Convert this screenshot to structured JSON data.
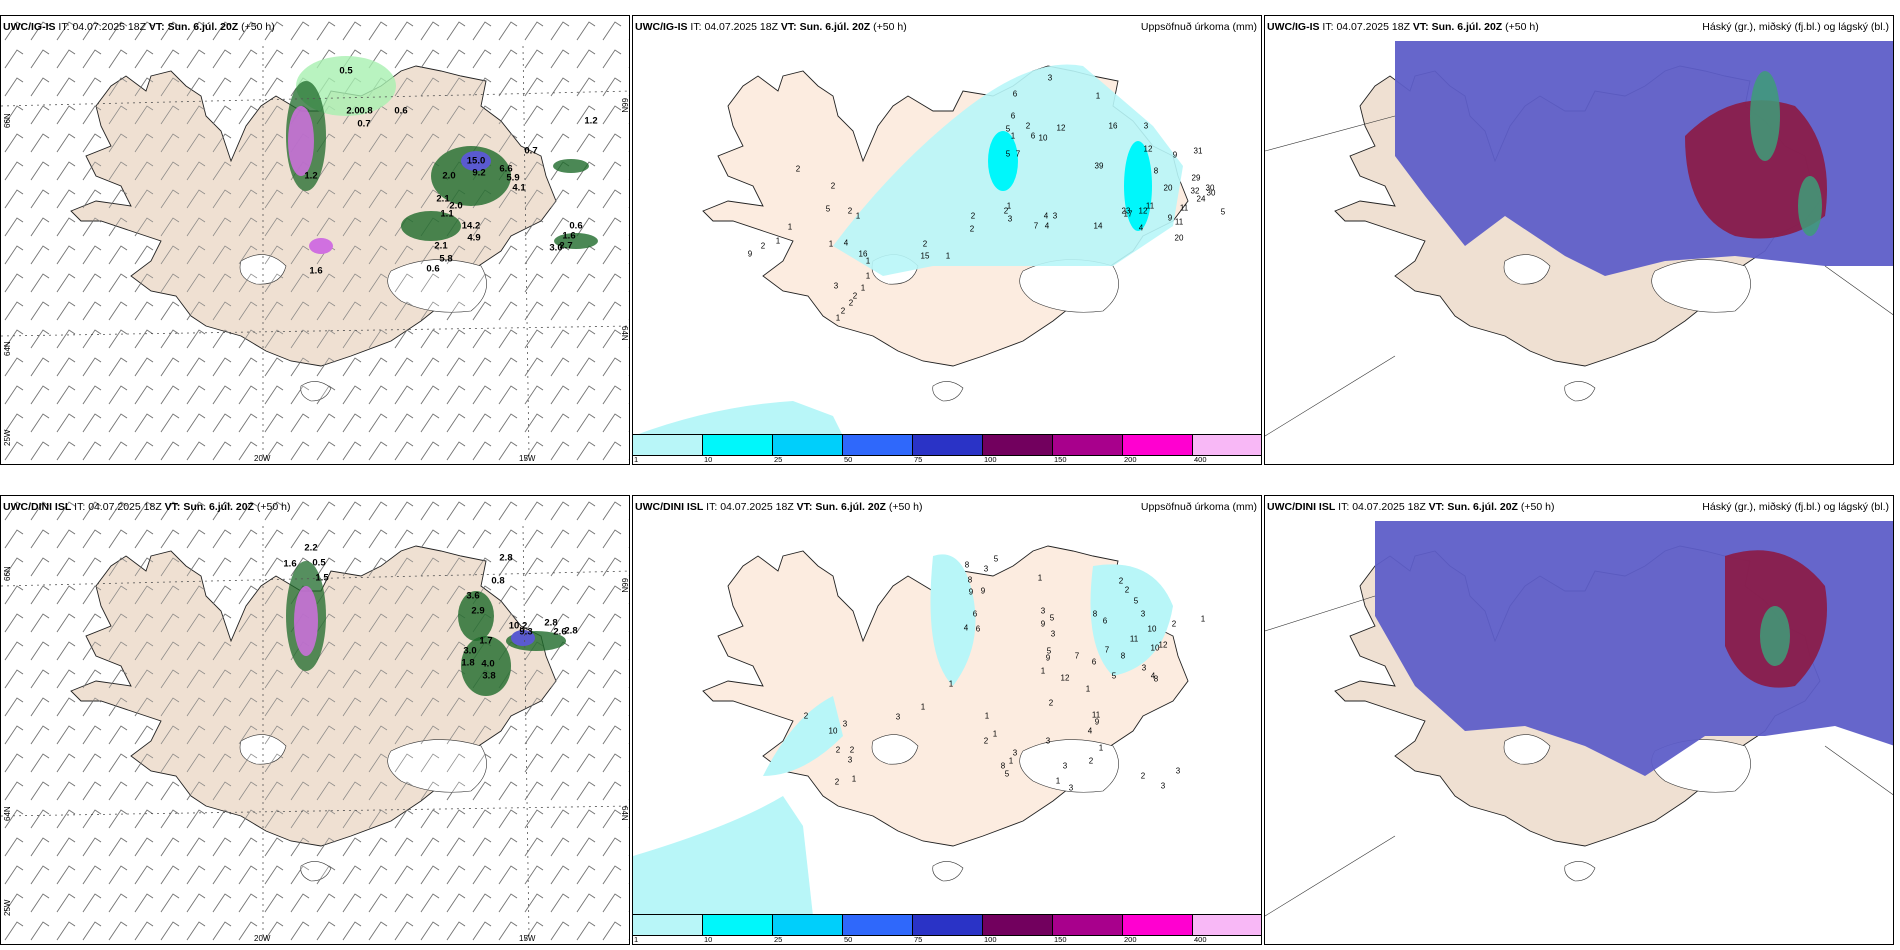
{
  "panels": [
    {
      "model": "UWC/IG-IS",
      "it_label": "IT:",
      "it_value": "04.07.2025 18Z",
      "vt_label": "VT:",
      "vt_value": "Sun. 6.júl. 20Z",
      "lead": "(+50 h)",
      "title_right": "",
      "axis_labels": {
        "lat_top": "66N",
        "lat_bottom": "64N",
        "lon_left": "25W",
        "lon_20": "20W",
        "lon_15": "15W",
        "right_66": "66N",
        "right_64": "64N"
      },
      "values": [
        "0.5",
        "2.0",
        "0.8",
        "0.7",
        "0.6",
        "1.2",
        "0.7",
        "15.0",
        "9.2",
        "2.0",
        "6.6",
        "5.9",
        "4.1",
        "2.1",
        "2.0",
        "1.1",
        "14.2",
        "4.9",
        "2.1",
        "5.8",
        "0.6",
        "1.6",
        "3.0",
        "2.7",
        "0.6",
        "1.2",
        "1.6"
      ]
    },
    {
      "model": "UWC/IG-IS",
      "it_label": "IT:",
      "it_value": "04.07.2025 18Z",
      "vt_label": "VT:",
      "vt_value": "Sun. 6.júl. 20Z",
      "lead": "(+50 h)",
      "title_right": "Uppsöfnuð úrkoma (mm)",
      "values": [
        "3",
        "1",
        "1",
        "6",
        "6",
        "2",
        "5",
        "5",
        "7",
        "6",
        "10",
        "12",
        "16",
        "39",
        "3",
        "12",
        "9",
        "31",
        "29",
        "24",
        "20",
        "8",
        "32",
        "30",
        "11",
        "30",
        "5",
        "17",
        "23",
        "14",
        "12",
        "11",
        "9",
        "11",
        "20",
        "4",
        "3",
        "7",
        "4",
        "4",
        "3",
        "1",
        "2",
        "2",
        "2",
        "16",
        "15",
        "1",
        "2",
        "9",
        "2",
        "1",
        "1",
        "4",
        "5",
        "2",
        "2",
        "2",
        "1",
        "1",
        "1",
        "1",
        "2",
        "2",
        "1",
        "3",
        "2",
        "1"
      ]
    },
    {
      "model": "UWC/IG-IS",
      "it_label": "IT:",
      "it_value": "04.07.2025 18Z",
      "vt_label": "VT:",
      "vt_value": "Sun. 6.júl. 20Z",
      "lead": "(+50 h)",
      "title_right": "Háský (gr.), miðský (fj.bl.) og lágský (bl.)"
    },
    {
      "model": "UWC/DINI ISL",
      "it_label": "IT:",
      "it_value": "04.07.2025 18Z",
      "vt_label": "VT:",
      "vt_value": "Sun. 6.júl. 20Z",
      "lead": "(+50 h)",
      "title_right": "",
      "axis_labels": {
        "lat_top": "66N",
        "lat_bottom": "64N",
        "lon_left": "25W",
        "lon_20": "20W",
        "lon_15": "15W",
        "right_66": "66N",
        "right_64": "64N"
      },
      "values": [
        "2.2",
        "1.6",
        "0.5",
        "1.5",
        "2.8",
        "0.8",
        "3.6",
        "2.9",
        "10.2",
        "9.3",
        "2.8",
        "2.6",
        "2.8",
        "1.7",
        "3.0",
        "1.8",
        "4.0",
        "3.8"
      ]
    },
    {
      "model": "UWC/DINI ISL",
      "it_label": "IT:",
      "it_value": "04.07.2025 18Z",
      "vt_label": "VT:",
      "vt_value": "Sun. 6.júl. 20Z",
      "lead": "(+50 h)",
      "title_right": "Uppsöfnuð úrkoma (mm)",
      "values": [
        "5",
        "8",
        "3",
        "8",
        "9",
        "9",
        "6",
        "4",
        "6",
        "1",
        "2",
        "2",
        "5",
        "3",
        "1",
        "2",
        "10",
        "8",
        "6",
        "11",
        "12",
        "10",
        "8",
        "3",
        "4",
        "8",
        "7",
        "5",
        "6",
        "7",
        "9",
        "5",
        "1",
        "3",
        "9",
        "5",
        "3",
        "12",
        "1",
        "2",
        "11",
        "9",
        "4",
        "2",
        "1",
        "1",
        "3",
        "1",
        "2",
        "3",
        "3",
        "2",
        "3",
        "1",
        "3",
        "3",
        "1",
        "8",
        "5",
        "10",
        "3",
        "2",
        "1",
        "1",
        "3",
        "2",
        "3",
        "2",
        "1",
        "2"
      ]
    },
    {
      "model": "UWC/DINI ISL",
      "it_label": "IT:",
      "it_value": "04.07.2025 18Z",
      "vt_label": "VT:",
      "vt_value": "Sun. 6.júl. 20Z",
      "lead": "(+50 h)",
      "title_right": "Háský (gr.), miðský (fj.bl.) og lágský (bl.)"
    }
  ],
  "colorbar": {
    "ticks": [
      "1",
      "10",
      "25",
      "50",
      "75",
      "100",
      "150",
      "200",
      "400"
    ],
    "colors": [
      "#b8f6f8",
      "#00f7fb",
      "#00cffb",
      "#2f68fb",
      "#2a33c6",
      "#72005e",
      "#a8008c",
      "#ff00d0",
      "#f8b8f6"
    ]
  },
  "colors": {
    "land": "#efe0d2",
    "precip_land": "#fcece0",
    "cloud_low": "#5e5ec8",
    "cloud_mid": "#8c1a44",
    "cloud_high": "#3e9c78",
    "green_rain": "#1e6a2a"
  }
}
